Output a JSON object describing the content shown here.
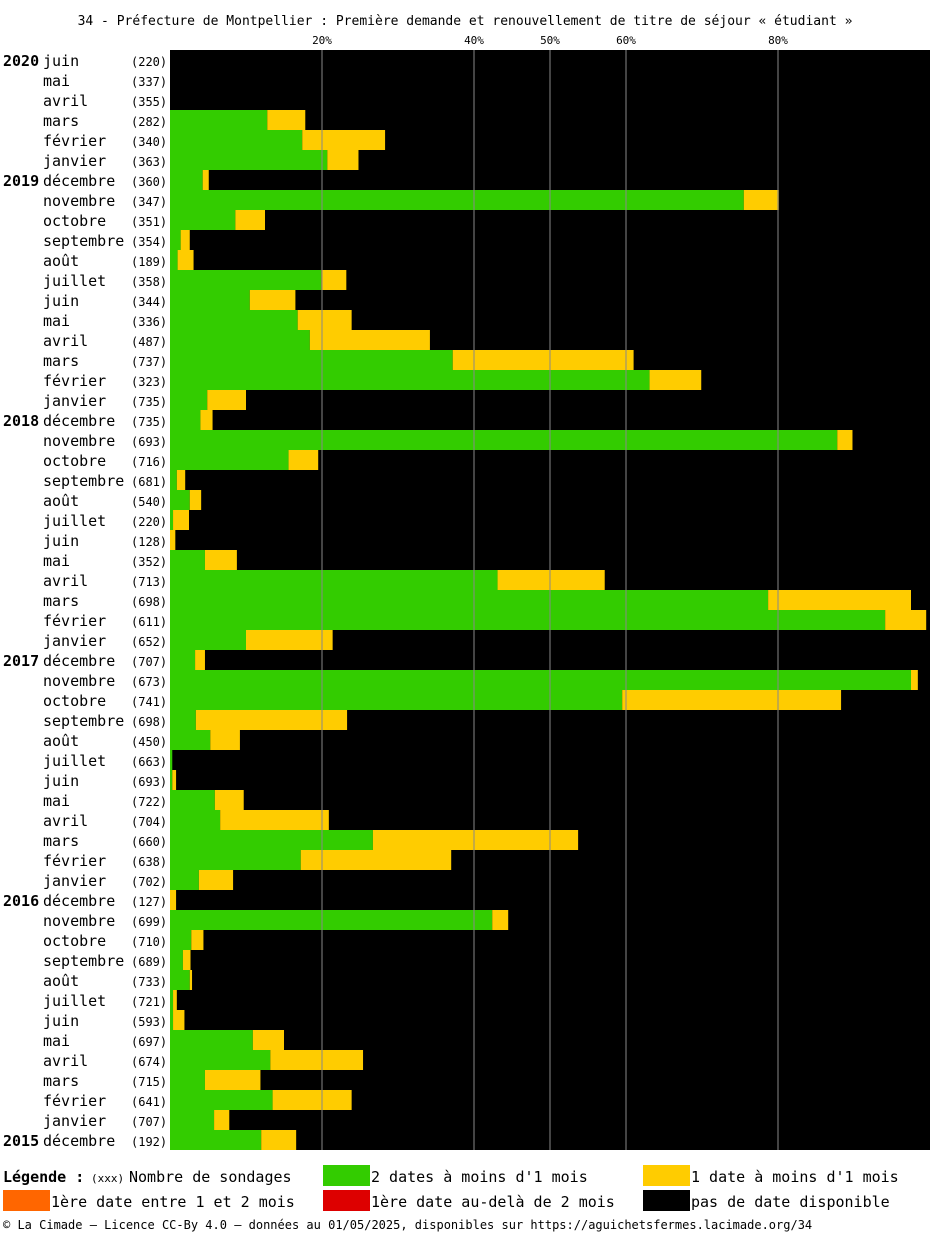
{
  "title": "34 - Préfecture de Montpellier : Première demande et renouvellement de titre de séjour « étudiant »",
  "colors": {
    "two_dates": "#33cc00",
    "one_date": "#ffcc00",
    "first_1_2": "#ff6600",
    "first_over_2": "#dd0000",
    "none": "#000000",
    "gridline": "#888888"
  },
  "legend": {
    "title": "Légende :",
    "count_code": "(xxx)",
    "count_label": "Nombre de sondages",
    "two_dates": "2 dates à moins d'1 mois",
    "one_date": "1 date à moins d'1 mois",
    "first_1_2": "1ère date entre 1 et 2 mois",
    "first_over_2": "1ère date au-delà de 2 mois",
    "none": "pas de date disponible"
  },
  "footer": "© La Cimade – Licence CC-By 4.0 – données au 01/05/2025, disponibles sur https://aguichetsfermes.lacimade.org/34",
  "chart_data": {
    "type": "bar",
    "orientation": "horizontal",
    "stacked": true,
    "xlim": [
      0,
      100
    ],
    "xticks": [
      20,
      40,
      50,
      60,
      80
    ],
    "xtick_labels": [
      "20%",
      "40%",
      "50%",
      "60%",
      "80%"
    ],
    "series_names": [
      "2 dates à moins d'1 mois",
      "1 date à moins d'1 mois",
      "1ère date entre 1 et 2 mois",
      "1ère date au-delà de 2 mois",
      "pas de date disponible"
    ],
    "rows": [
      {
        "year": "2020",
        "month": "juin",
        "count": "(220)",
        "green": 0,
        "yellow": 0
      },
      {
        "year": "",
        "month": "mai",
        "count": "(337)",
        "green": 0,
        "yellow": 0
      },
      {
        "year": "",
        "month": "avril",
        "count": "(355)",
        "green": 0,
        "yellow": 0
      },
      {
        "year": "",
        "month": "mars",
        "count": "(282)",
        "green": 12.8,
        "yellow": 5.0
      },
      {
        "year": "",
        "month": "février",
        "count": "(340)",
        "green": 17.4,
        "yellow": 10.9
      },
      {
        "year": "",
        "month": "janvier",
        "count": "(363)",
        "green": 20.7,
        "yellow": 4.1
      },
      {
        "year": "2019",
        "month": "décembre",
        "count": "(360)",
        "green": 4.3,
        "yellow": 0.8
      },
      {
        "year": "",
        "month": "novembre",
        "count": "(347)",
        "green": 75.5,
        "yellow": 4.6
      },
      {
        "year": "",
        "month": "octobre",
        "count": "(351)",
        "green": 8.6,
        "yellow": 3.9
      },
      {
        "year": "",
        "month": "septembre",
        "count": "(354)",
        "green": 1.4,
        "yellow": 1.2
      },
      {
        "year": "",
        "month": "août",
        "count": "(189)",
        "green": 1.0,
        "yellow": 2.1
      },
      {
        "year": "",
        "month": "juillet",
        "count": "(358)",
        "green": 19.9,
        "yellow": 3.3
      },
      {
        "year": "",
        "month": "juin",
        "count": "(344)",
        "green": 10.5,
        "yellow": 6.0
      },
      {
        "year": "",
        "month": "mai",
        "count": "(336)",
        "green": 16.8,
        "yellow": 7.1
      },
      {
        "year": "",
        "month": "avril",
        "count": "(487)",
        "green": 18.4,
        "yellow": 15.8
      },
      {
        "year": "",
        "month": "mars",
        "count": "(737)",
        "green": 37.2,
        "yellow": 23.8
      },
      {
        "year": "",
        "month": "février",
        "count": "(323)",
        "green": 63.1,
        "yellow": 6.8
      },
      {
        "year": "",
        "month": "janvier",
        "count": "(735)",
        "green": 4.9,
        "yellow": 5.1
      },
      {
        "year": "2018",
        "month": "décembre",
        "count": "(735)",
        "green": 4.0,
        "yellow": 1.6
      },
      {
        "year": "",
        "month": "novembre",
        "count": "(693)",
        "green": 87.8,
        "yellow": 2.0
      },
      {
        "year": "",
        "month": "octobre",
        "count": "(716)",
        "green": 15.6,
        "yellow": 3.9
      },
      {
        "year": "",
        "month": "septembre",
        "count": "(681)",
        "green": 0.9,
        "yellow": 1.1
      },
      {
        "year": "",
        "month": "août",
        "count": "(540)",
        "green": 2.6,
        "yellow": 1.5
      },
      {
        "year": "",
        "month": "juillet",
        "count": "(220)",
        "green": 0.4,
        "yellow": 2.1
      },
      {
        "year": "",
        "month": "juin",
        "count": "(128)",
        "green": 0,
        "yellow": 0.7
      },
      {
        "year": "",
        "month": "mai",
        "count": "(352)",
        "green": 4.6,
        "yellow": 4.2
      },
      {
        "year": "",
        "month": "avril",
        "count": "(713)",
        "green": 43.1,
        "yellow": 14.1
      },
      {
        "year": "",
        "month": "mars",
        "count": "(698)",
        "green": 78.7,
        "yellow": 18.8
      },
      {
        "year": "",
        "month": "février",
        "count": "(611)",
        "green": 94.1,
        "yellow": 5.4
      },
      {
        "year": "",
        "month": "janvier",
        "count": "(652)",
        "green": 10.0,
        "yellow": 11.4
      },
      {
        "year": "2017",
        "month": "décembre",
        "count": "(707)",
        "green": 3.3,
        "yellow": 1.3
      },
      {
        "year": "",
        "month": "novembre",
        "count": "(673)",
        "green": 97.5,
        "yellow": 0.9
      },
      {
        "year": "",
        "month": "octobre",
        "count": "(741)",
        "green": 59.5,
        "yellow": 28.8
      },
      {
        "year": "",
        "month": "septembre",
        "count": "(698)",
        "green": 3.4,
        "yellow": 19.9
      },
      {
        "year": "",
        "month": "août",
        "count": "(450)",
        "green": 5.3,
        "yellow": 3.9
      },
      {
        "year": "",
        "month": "juillet",
        "count": "(663)",
        "green": 0.3,
        "yellow": 0
      },
      {
        "year": "",
        "month": "juin",
        "count": "(693)",
        "green": 0.3,
        "yellow": 0.5
      },
      {
        "year": "",
        "month": "mai",
        "count": "(722)",
        "green": 5.9,
        "yellow": 3.8
      },
      {
        "year": "",
        "month": "avril",
        "count": "(704)",
        "green": 6.6,
        "yellow": 14.3
      },
      {
        "year": "",
        "month": "mars",
        "count": "(660)",
        "green": 26.7,
        "yellow": 27.0
      },
      {
        "year": "",
        "month": "février",
        "count": "(638)",
        "green": 17.2,
        "yellow": 19.8
      },
      {
        "year": "",
        "month": "janvier",
        "count": "(702)",
        "green": 3.8,
        "yellow": 4.5
      },
      {
        "year": "2016",
        "month": "décembre",
        "count": "(127)",
        "green": 0,
        "yellow": 0.8
      },
      {
        "year": "",
        "month": "novembre",
        "count": "(699)",
        "green": 42.4,
        "yellow": 2.1
      },
      {
        "year": "",
        "month": "octobre",
        "count": "(710)",
        "green": 2.8,
        "yellow": 1.6
      },
      {
        "year": "",
        "month": "septembre",
        "count": "(689)",
        "green": 1.7,
        "yellow": 1.0
      },
      {
        "year": "",
        "month": "août",
        "count": "(733)",
        "green": 2.6,
        "yellow": 0.3
      },
      {
        "year": "",
        "month": "juillet",
        "count": "(721)",
        "green": 0.4,
        "yellow": 0.5
      },
      {
        "year": "",
        "month": "juin",
        "count": "(593)",
        "green": 0.4,
        "yellow": 1.5
      },
      {
        "year": "",
        "month": "mai",
        "count": "(697)",
        "green": 10.9,
        "yellow": 4.1
      },
      {
        "year": "",
        "month": "avril",
        "count": "(674)",
        "green": 13.2,
        "yellow": 12.2
      },
      {
        "year": "",
        "month": "mars",
        "count": "(715)",
        "green": 4.6,
        "yellow": 7.3
      },
      {
        "year": "",
        "month": "février",
        "count": "(641)",
        "green": 13.5,
        "yellow": 10.4
      },
      {
        "year": "",
        "month": "janvier",
        "count": "(707)",
        "green": 5.8,
        "yellow": 2.0
      },
      {
        "year": "2015",
        "month": "décembre",
        "count": "(192)",
        "green": 12.0,
        "yellow": 4.6
      }
    ]
  }
}
